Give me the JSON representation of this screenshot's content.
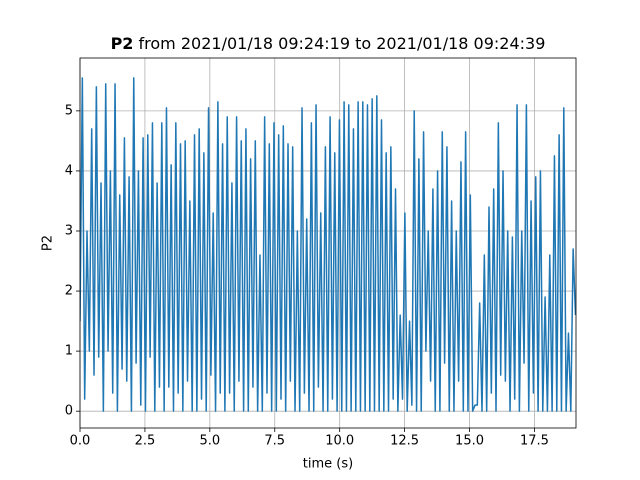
{
  "chart_data": {
    "type": "line",
    "title_bold": "P2",
    "title": "from 2021/01/18 09:24:19 to 2021/01/18 09:24:39",
    "xlabel": "time (s)",
    "ylabel": "P2",
    "xlim": [
      0,
      19.1
    ],
    "ylim": [
      -0.28,
      5.88
    ],
    "xticks": [
      {
        "value": 0,
        "label": "0.0"
      },
      2.5,
      {
        "value": 5,
        "label": "5.0"
      },
      7.5,
      {
        "value": 10,
        "label": "10.0"
      },
      12.5,
      {
        "value": 15,
        "label": "15.0"
      },
      17.5
    ],
    "yticks": [
      0,
      1,
      2,
      3,
      4,
      5
    ],
    "grid": true,
    "color": "#1f77b4",
    "x": [
      0,
      0.09,
      0.18,
      0.27,
      0.36,
      0.45,
      0.54,
      0.63,
      0.72,
      0.81,
      0.9,
      0.99,
      1.08,
      1.17,
      1.26,
      1.35,
      1.44,
      1.53,
      1.62,
      1.71,
      1.8,
      1.89,
      1.98,
      2.07,
      2.16,
      2.25,
      2.34,
      2.43,
      2.52,
      2.61,
      2.7,
      2.79,
      2.88,
      2.97,
      3.06,
      3.15,
      3.24,
      3.33,
      3.42,
      3.51,
      3.6,
      3.69,
      3.78,
      3.87,
      3.96,
      4.05,
      4.14,
      4.23,
      4.32,
      4.41,
      4.5,
      4.59,
      4.68,
      4.77,
      4.86,
      4.95,
      5.04,
      5.13,
      5.22,
      5.31,
      5.4,
      5.49,
      5.58,
      5.67,
      5.76,
      5.85,
      5.94,
      6.03,
      6.12,
      6.21,
      6.3,
      6.39,
      6.48,
      6.57,
      6.66,
      6.75,
      6.84,
      6.93,
      7.02,
      7.11,
      7.2,
      7.29,
      7.38,
      7.47,
      7.56,
      7.65,
      7.74,
      7.83,
      7.92,
      8.01,
      8.1,
      8.19,
      8.28,
      8.37,
      8.46,
      8.55,
      8.64,
      8.73,
      8.82,
      8.91,
      9,
      9.09,
      9.18,
      9.27,
      9.36,
      9.45,
      9.54,
      9.63,
      9.72,
      9.81,
      9.9,
      9.99,
      10.08,
      10.17,
      10.26,
      10.35,
      10.44,
      10.53,
      10.62,
      10.71,
      10.8,
      10.89,
      10.98,
      11.07,
      11.16,
      11.25,
      11.34,
      11.43,
      11.52,
      11.61,
      11.7,
      11.79,
      11.88,
      11.97,
      12.06,
      12.15,
      12.24,
      12.33,
      12.42,
      12.51,
      12.6,
      12.69,
      12.78,
      12.87,
      12.96,
      13.05,
      13.14,
      13.23,
      13.32,
      13.41,
      13.5,
      13.59,
      13.68,
      13.77,
      13.86,
      13.95,
      14.04,
      14.13,
      14.22,
      14.31,
      14.4,
      14.49,
      14.58,
      14.67,
      14.76,
      14.85,
      14.94,
      15.03,
      15.12,
      15.21,
      15.3,
      15.39,
      15.48,
      15.57,
      15.66,
      15.75,
      15.84,
      15.93,
      16.02,
      16.11,
      16.2,
      16.29,
      16.38,
      16.47,
      16.56,
      16.65,
      16.74,
      16.83,
      16.92,
      17.01,
      17.1,
      17.19,
      17.28,
      17.37,
      17.46,
      17.55,
      17.64,
      17.73,
      17.82,
      17.91,
      18,
      18.09,
      18.18,
      18.27,
      18.36,
      18.45,
      18.54,
      18.63,
      18.72,
      18.81,
      18.9,
      18.99,
      19.08
    ],
    "values": [
      1.5,
      5.55,
      0.2,
      3.0,
      1.0,
      4.7,
      0.6,
      5.4,
      0.9,
      3.8,
      0,
      5.45,
      1.0,
      4.0,
      0.3,
      5.45,
      0,
      3.6,
      0.7,
      4.55,
      0.5,
      3.9,
      0,
      5.55,
      0.8,
      4.0,
      0.1,
      4.55,
      0,
      4.6,
      0.9,
      4.8,
      0,
      3.8,
      0.4,
      4.8,
      0,
      5.05,
      0.4,
      4.1,
      0,
      4.8,
      0.3,
      4.45,
      0,
      4.5,
      0.5,
      3.5,
      0,
      4.6,
      0,
      4.7,
      0.2,
      4.3,
      0,
      5.05,
      0.6,
      3.3,
      0,
      5.15,
      0.3,
      4.45,
      0,
      4.9,
      0.3,
      3.8,
      0,
      4.9,
      0.5,
      4.5,
      0,
      4.7,
      0,
      4.2,
      0.4,
      4.5,
      0,
      2.6,
      0,
      4.9,
      0.3,
      4.45,
      0,
      4.8,
      0,
      4.6,
      0.2,
      4.75,
      0,
      4.45,
      0.5,
      4.4,
      0,
      3.0,
      0,
      5.05,
      0.3,
      3.2,
      0,
      4.8,
      0,
      5.1,
      0.4,
      3.3,
      0,
      4.4,
      0,
      4.9,
      0.2,
      4.3,
      0,
      4.85,
      0,
      5.15,
      0,
      5.1,
      0,
      4.7,
      0,
      5.15,
      0,
      5.15,
      0,
      5.1,
      0,
      5.2,
      0,
      5.25,
      0,
      4.85,
      0,
      4.3,
      0,
      4.4,
      0.2,
      3.7,
      0,
      1.6,
      0.2,
      3.3,
      0,
      1.5,
      0.1,
      5.0,
      0,
      4.2,
      0,
      4.65,
      1.0,
      3.0,
      0.5,
      3.7,
      0,
      4.0,
      0,
      4.65,
      0.8,
      4.4,
      0,
      3.5,
      0,
      3.0,
      0.5,
      4.15,
      0,
      4.65,
      0,
      3.6,
      0,
      0.1,
      0.1,
      1.8,
      0,
      2.6,
      0,
      3.4,
      0.3,
      3.7,
      0,
      4.8,
      0.6,
      4.0,
      0.5,
      3.0,
      0,
      2.9,
      0.2,
      5.1,
      0,
      3.0,
      0.8,
      5.1,
      0,
      3.5,
      0.3,
      3.9,
      0,
      4.0,
      0,
      1.9,
      0,
      2.6,
      0,
      4.25,
      0,
      4.6,
      0,
      5.05,
      0,
      1.3,
      0,
      2.7,
      1.6
    ]
  }
}
